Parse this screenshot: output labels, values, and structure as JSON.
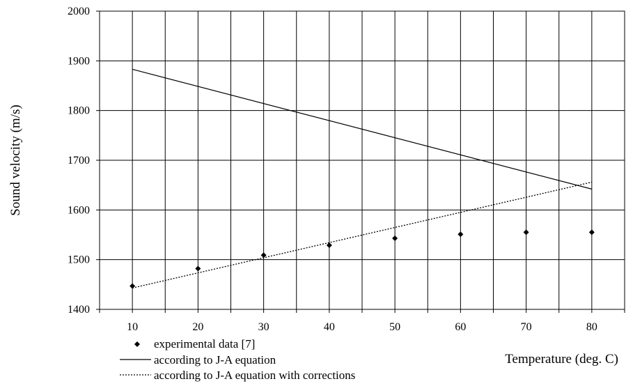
{
  "chart_data": {
    "type": "line",
    "title": "",
    "xlabel": "Temperature (deg. C)",
    "ylabel": "Sound velocity (m/s)",
    "ylim": [
      1400,
      2000
    ],
    "xlim": [
      5,
      85
    ],
    "x_ticks": [
      "10",
      "20",
      "30",
      "40",
      "50",
      "60",
      "70",
      "80"
    ],
    "y_ticks": [
      "1400",
      "1500",
      "1600",
      "1700",
      "1800",
      "1900",
      "2000"
    ],
    "grid": true,
    "legend_position": "bottom-left",
    "series": [
      {
        "name": "experimental data [7]",
        "style": "markers",
        "marker": "diamond",
        "color": "#000000",
        "x": [
          10,
          20,
          30,
          40,
          50,
          60,
          70,
          80
        ],
        "values": [
          1447,
          1482,
          1509,
          1529,
          1543,
          1551,
          1555,
          1555
        ]
      },
      {
        "name": "according to J-A equation",
        "style": "solid",
        "color": "#000000",
        "x": [
          10,
          80
        ],
        "values": [
          1883,
          1642
        ]
      },
      {
        "name": "according to J-A equation with corrections",
        "style": "dotted",
        "color": "#000000",
        "x": [
          10,
          80
        ],
        "values": [
          1443,
          1656
        ]
      }
    ]
  }
}
